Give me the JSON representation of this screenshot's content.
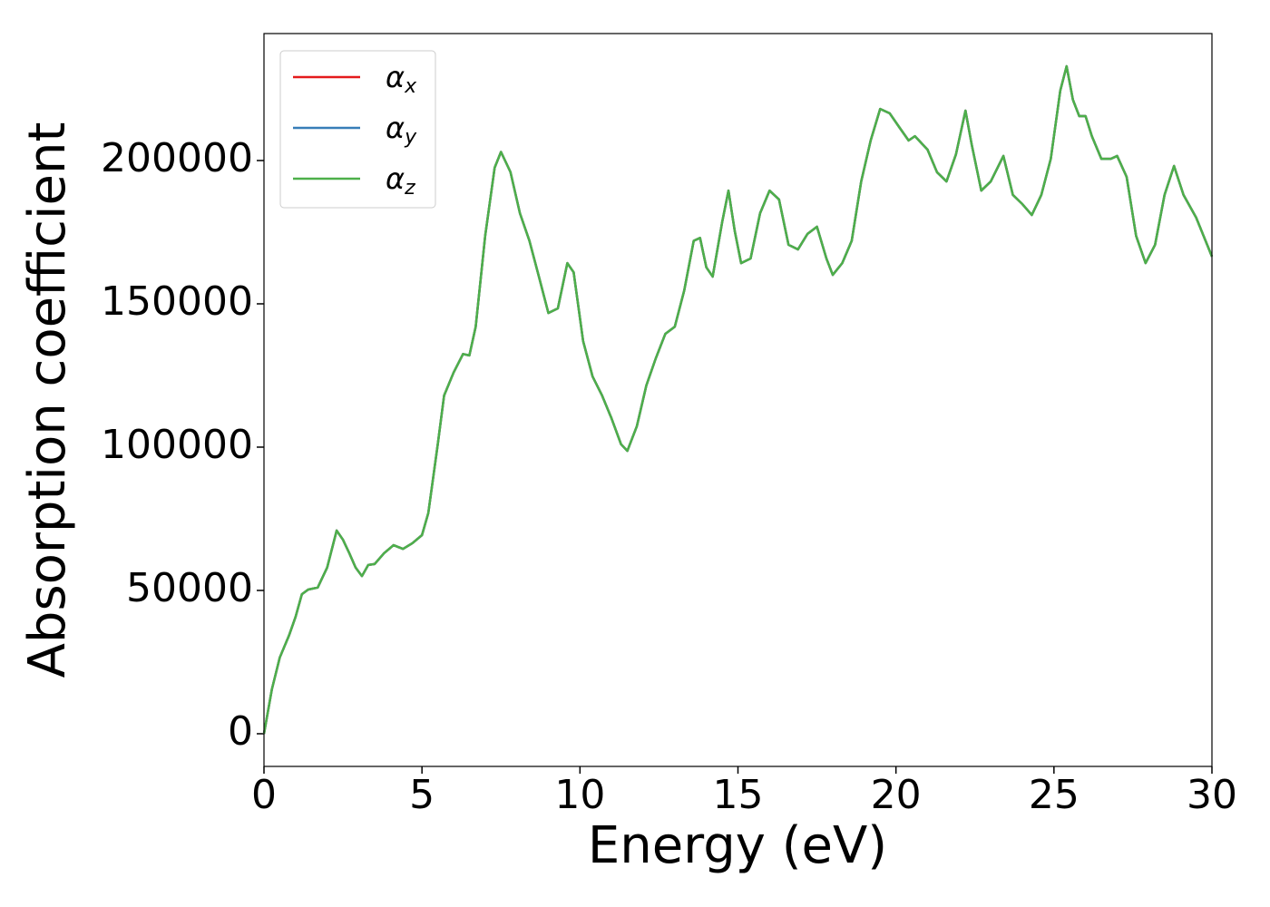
{
  "chart_data": {
    "type": "line",
    "xlabel": "Energy (eV)",
    "ylabel": "Absorption coefficient",
    "xlim": [
      0,
      30
    ],
    "xticks": [
      0,
      5,
      10,
      15,
      20,
      25,
      30
    ],
    "ylim": [
      -11400,
      244300
    ],
    "yticks": [
      0,
      50000,
      100000,
      150000,
      200000
    ],
    "legend": "upper left",
    "x": [
      0,
      0.25,
      0.5,
      0.8,
      1.0,
      1.2,
      1.4,
      1.7,
      2.0,
      2.3,
      2.5,
      2.7,
      2.9,
      3.1,
      3.3,
      3.5,
      3.8,
      4.1,
      4.4,
      4.7,
      5.0,
      5.2,
      5.5,
      5.7,
      6.0,
      6.3,
      6.5,
      6.7,
      7.0,
      7.3,
      7.5,
      7.8,
      8.1,
      8.4,
      8.7,
      9.0,
      9.3,
      9.6,
      9.8,
      10.1,
      10.4,
      10.7,
      11.0,
      11.3,
      11.5,
      11.8,
      12.1,
      12.4,
      12.7,
      13.0,
      13.3,
      13.6,
      13.8,
      14.0,
      14.2,
      14.5,
      14.7,
      14.9,
      15.1,
      15.4,
      15.7,
      16.0,
      16.3,
      16.6,
      16.9,
      17.2,
      17.5,
      17.8,
      18.0,
      18.3,
      18.6,
      18.9,
      19.2,
      19.5,
      19.8,
      20.1,
      20.4,
      20.6,
      21.0,
      21.3,
      21.6,
      21.9,
      22.2,
      22.4,
      22.7,
      23.0,
      23.4,
      23.7,
      24.0,
      24.3,
      24.6,
      24.9,
      25.2,
      25.4,
      25.6,
      25.8,
      26.0,
      26.2,
      26.5,
      26.8,
      27.0,
      27.3,
      27.6,
      27.9,
      28.2,
      28.5,
      28.8,
      29.1,
      29.5,
      30.0
    ],
    "series": [
      {
        "name": "αx",
        "color": "#e41a1c",
        "values": [
          0,
          15500,
          26600,
          34500,
          40800,
          48700,
          50300,
          51000,
          58000,
          70900,
          67700,
          63000,
          58000,
          55000,
          58900,
          59200,
          63000,
          65800,
          64500,
          66500,
          69300,
          77000,
          101000,
          118000,
          126000,
          132500,
          132000,
          142000,
          173700,
          197500,
          203000,
          196000,
          181600,
          172000,
          159500,
          146800,
          148400,
          164200,
          161000,
          137000,
          124600,
          118000,
          110000,
          101000,
          98700,
          107300,
          121500,
          131000,
          139500,
          142000,
          154700,
          172000,
          173000,
          162700,
          159500,
          178500,
          189500,
          175300,
          164200,
          165800,
          181600,
          189500,
          186400,
          170600,
          169000,
          174400,
          176900,
          165800,
          160100,
          164200,
          172000,
          192700,
          207000,
          218000,
          216500,
          211700,
          207000,
          208500,
          203800,
          195900,
          192700,
          202200,
          217400,
          205400,
          189500,
          192700,
          201600,
          188000,
          184800,
          181000,
          188000,
          200600,
          224400,
          232900,
          221200,
          215500,
          215500,
          208500,
          200600,
          200600,
          201600,
          194300,
          173700,
          164200,
          170600,
          188000,
          198100,
          188000,
          180100,
          166500
        ]
      },
      {
        "name": "αy",
        "color": "#377eb8",
        "values": [
          0,
          15500,
          26600,
          34500,
          40800,
          48700,
          50300,
          51000,
          58000,
          70900,
          67700,
          63000,
          58000,
          55000,
          58900,
          59200,
          63000,
          65800,
          64500,
          66500,
          69300,
          77000,
          101000,
          118000,
          126000,
          132500,
          132000,
          142000,
          173700,
          197500,
          203000,
          196000,
          181600,
          172000,
          159500,
          146800,
          148400,
          164200,
          161000,
          137000,
          124600,
          118000,
          110000,
          101000,
          98700,
          107300,
          121500,
          131000,
          139500,
          142000,
          154700,
          172000,
          173000,
          162700,
          159500,
          178500,
          189500,
          175300,
          164200,
          165800,
          181600,
          189500,
          186400,
          170600,
          169000,
          174400,
          176900,
          165800,
          160100,
          164200,
          172000,
          192700,
          207000,
          218000,
          216500,
          211700,
          207000,
          208500,
          203800,
          195900,
          192700,
          202200,
          217400,
          205400,
          189500,
          192700,
          201600,
          188000,
          184800,
          181000,
          188000,
          200600,
          224400,
          232900,
          221200,
          215500,
          215500,
          208500,
          200600,
          200600,
          201600,
          194300,
          173700,
          164200,
          170600,
          188000,
          198100,
          188000,
          180100,
          166500
        ]
      },
      {
        "name": "αz",
        "color": "#4daf4a",
        "values": [
          0,
          15500,
          26600,
          34500,
          40800,
          48700,
          50300,
          51000,
          58000,
          70900,
          67700,
          63000,
          58000,
          55000,
          58900,
          59200,
          63000,
          65800,
          64500,
          66500,
          69300,
          77000,
          101000,
          118000,
          126000,
          132500,
          132000,
          142000,
          173700,
          197500,
          203000,
          196000,
          181600,
          172000,
          159500,
          146800,
          148400,
          164200,
          161000,
          137000,
          124600,
          118000,
          110000,
          101000,
          98700,
          107300,
          121500,
          131000,
          139500,
          142000,
          154700,
          172000,
          173000,
          162700,
          159500,
          178500,
          189500,
          175300,
          164200,
          165800,
          181600,
          189500,
          186400,
          170600,
          169000,
          174400,
          176900,
          165800,
          160100,
          164200,
          172000,
          192700,
          207000,
          218000,
          216500,
          211700,
          207000,
          208500,
          203800,
          195900,
          192700,
          202200,
          217400,
          205400,
          189500,
          192700,
          201600,
          188000,
          184800,
          181000,
          188000,
          200600,
          224400,
          232900,
          221200,
          215500,
          215500,
          208500,
          200600,
          200600,
          201600,
          194300,
          173700,
          164200,
          170600,
          188000,
          198100,
          188000,
          180100,
          166500
        ]
      }
    ]
  }
}
